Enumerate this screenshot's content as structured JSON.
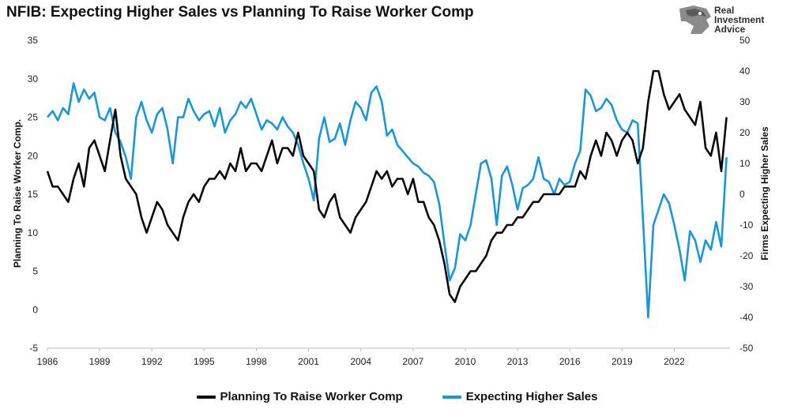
{
  "header": {
    "title": "NFIB: Expecting Higher Sales vs Planning To Raise Worker Comp",
    "logo": {
      "line1": "Real",
      "line2": "Investment",
      "line3": "Advice",
      "icon": "eagle-head-icon"
    }
  },
  "colors": {
    "worker_comp": "#0a0a0a",
    "sales": "#1a97d8"
  },
  "chart_data": {
    "type": "line",
    "title": "NFIB: Expecting Higher Sales vs Planning To Raise Worker Comp",
    "xlim": [
      1986,
      2025.2
    ],
    "x_ticks": [
      1986,
      1989,
      1992,
      1995,
      1998,
      2001,
      2004,
      2007,
      2010,
      2013,
      2016,
      2019,
      2022
    ],
    "left_axis": {
      "label": "Planning To Raise Worker Comp.",
      "ylim": [
        -5,
        35
      ],
      "ticks": [
        -5,
        0,
        5,
        10,
        15,
        20,
        25,
        30,
        35
      ]
    },
    "right_axis": {
      "label": "Firms Expecting Higher Sales",
      "ylim": [
        -50,
        50
      ],
      "ticks": [
        -50,
        -40,
        -30,
        -20,
        -10,
        0,
        10,
        20,
        30,
        40,
        50
      ]
    },
    "grid": false,
    "legend_position": "bottom",
    "series": [
      {
        "name": "Planning To Raise Worker Comp",
        "axis": "left",
        "x": [
          1986.0,
          1986.3,
          1986.6,
          1986.9,
          1987.2,
          1987.5,
          1987.8,
          1988.1,
          1988.4,
          1988.7,
          1989.0,
          1989.3,
          1989.6,
          1989.9,
          1990.2,
          1990.5,
          1990.8,
          1991.1,
          1991.4,
          1991.7,
          1992.0,
          1992.3,
          1992.6,
          1992.9,
          1993.2,
          1993.5,
          1993.8,
          1994.1,
          1994.4,
          1994.7,
          1995.0,
          1995.3,
          1995.6,
          1995.9,
          1996.2,
          1996.5,
          1996.8,
          1997.1,
          1997.4,
          1997.7,
          1998.0,
          1998.3,
          1998.6,
          1998.9,
          1999.2,
          1999.5,
          1999.8,
          2000.1,
          2000.4,
          2000.7,
          2001.0,
          2001.3,
          2001.6,
          2001.9,
          2002.2,
          2002.5,
          2002.8,
          2003.1,
          2003.4,
          2003.7,
          2004.0,
          2004.3,
          2004.6,
          2004.9,
          2005.2,
          2005.5,
          2005.8,
          2006.1,
          2006.4,
          2006.7,
          2007.0,
          2007.3,
          2007.6,
          2007.9,
          2008.2,
          2008.5,
          2008.8,
          2009.1,
          2009.4,
          2009.7,
          2010.0,
          2010.3,
          2010.6,
          2010.9,
          2011.2,
          2011.5,
          2011.8,
          2012.1,
          2012.4,
          2012.7,
          2013.0,
          2013.3,
          2013.6,
          2013.9,
          2014.2,
          2014.5,
          2014.8,
          2015.1,
          2015.4,
          2015.7,
          2016.0,
          2016.3,
          2016.6,
          2016.9,
          2017.2,
          2017.5,
          2017.8,
          2018.1,
          2018.4,
          2018.7,
          2019.0,
          2019.3,
          2019.6,
          2019.9,
          2020.2,
          2020.5,
          2020.8,
          2021.1,
          2021.4,
          2021.7,
          2022.0,
          2022.3,
          2022.6,
          2022.9,
          2023.2,
          2023.5,
          2023.8,
          2024.1,
          2024.4,
          2024.7,
          2025.0
        ],
        "values": [
          18,
          16,
          16,
          15,
          14,
          17,
          19,
          16,
          21,
          22,
          20,
          18,
          22,
          26,
          20,
          17,
          16,
          15,
          12,
          10,
          12,
          14,
          13,
          11,
          10,
          9,
          12,
          14,
          15,
          14,
          16,
          17,
          17,
          18,
          17,
          19,
          18,
          21,
          18,
          19,
          19,
          18,
          20,
          22,
          19,
          21,
          21,
          20,
          23,
          20,
          19,
          18,
          13,
          12,
          14,
          15,
          12,
          11,
          10,
          12,
          13,
          14,
          16,
          18,
          17,
          18,
          16,
          17,
          17,
          15,
          17,
          14,
          14,
          12,
          11,
          9,
          6,
          2,
          1,
          3,
          4,
          5,
          5,
          6,
          7,
          9,
          10,
          10,
          11,
          11,
          12,
          12,
          13,
          14,
          14,
          15,
          15,
          15,
          15,
          16,
          16,
          16,
          18,
          17,
          20,
          22,
          20,
          23,
          22,
          20,
          22,
          23,
          22,
          19,
          21,
          27,
          31,
          31,
          28,
          26,
          27,
          28,
          26,
          25,
          24,
          27,
          21,
          20,
          23,
          18,
          25
        ]
      },
      {
        "name": "Expecting Higher Sales",
        "axis": "right",
        "x": [
          1986.0,
          1986.3,
          1986.6,
          1986.9,
          1987.2,
          1987.5,
          1987.8,
          1988.1,
          1988.4,
          1988.7,
          1989.0,
          1989.3,
          1989.6,
          1989.9,
          1990.2,
          1990.5,
          1990.8,
          1991.1,
          1991.4,
          1991.7,
          1992.0,
          1992.3,
          1992.6,
          1992.9,
          1993.2,
          1993.5,
          1993.8,
          1994.1,
          1994.4,
          1994.7,
          1995.0,
          1995.3,
          1995.6,
          1995.9,
          1996.2,
          1996.5,
          1996.8,
          1997.1,
          1997.4,
          1997.7,
          1998.0,
          1998.3,
          1998.6,
          1998.9,
          1999.2,
          1999.5,
          1999.8,
          2000.1,
          2000.4,
          2000.7,
          2001.0,
          2001.3,
          2001.6,
          2001.9,
          2002.2,
          2002.5,
          2002.8,
          2003.1,
          2003.4,
          2003.7,
          2004.0,
          2004.3,
          2004.6,
          2004.9,
          2005.2,
          2005.5,
          2005.8,
          2006.1,
          2006.4,
          2006.7,
          2007.0,
          2007.3,
          2007.6,
          2007.9,
          2008.2,
          2008.5,
          2008.8,
          2009.1,
          2009.4,
          2009.7,
          2010.0,
          2010.3,
          2010.6,
          2010.9,
          2011.2,
          2011.5,
          2011.8,
          2012.1,
          2012.4,
          2012.7,
          2013.0,
          2013.3,
          2013.6,
          2013.9,
          2014.2,
          2014.5,
          2014.8,
          2015.1,
          2015.4,
          2015.7,
          2016.0,
          2016.3,
          2016.6,
          2016.9,
          2017.2,
          2017.5,
          2017.8,
          2018.1,
          2018.4,
          2018.7,
          2019.0,
          2019.3,
          2019.6,
          2019.9,
          2020.2,
          2020.5,
          2020.8,
          2021.1,
          2021.4,
          2021.7,
          2022.0,
          2022.3,
          2022.6,
          2022.9,
          2023.2,
          2023.5,
          2023.8,
          2024.1,
          2024.4,
          2024.7,
          2025.0
        ],
        "values": [
          25,
          27,
          24,
          28,
          26,
          36,
          30,
          34,
          31,
          33,
          25,
          24,
          28,
          20,
          17,
          12,
          5,
          25,
          30,
          24,
          20,
          26,
          28,
          21,
          10,
          25,
          25,
          31,
          27,
          24,
          26,
          27,
          22,
          28,
          20,
          24,
          26,
          30,
          28,
          31,
          26,
          21,
          24,
          23,
          21,
          25,
          22,
          20,
          16,
          10,
          5,
          -2,
          18,
          25,
          17,
          18,
          23,
          16,
          24,
          30,
          28,
          24,
          33,
          35,
          30,
          19,
          21,
          16,
          14,
          12,
          10,
          9,
          7,
          6,
          4,
          -3,
          -16,
          -28,
          -24,
          -13,
          -15,
          -10,
          0,
          10,
          11,
          5,
          -10,
          6,
          9,
          3,
          -5,
          2,
          3,
          5,
          12,
          5,
          4,
          0,
          5,
          3,
          4,
          10,
          14,
          34,
          32,
          27,
          28,
          31,
          29,
          24,
          21,
          20,
          24,
          23,
          -8,
          -40,
          -10,
          -5,
          0,
          -3,
          -10,
          -18,
          -28,
          -12,
          -15,
          -22,
          -15,
          -18,
          -9,
          -17,
          12
        ]
      }
    ]
  },
  "legend": {
    "item1": "Planning To Raise Worker Comp",
    "item2": "Expecting Higher Sales"
  }
}
